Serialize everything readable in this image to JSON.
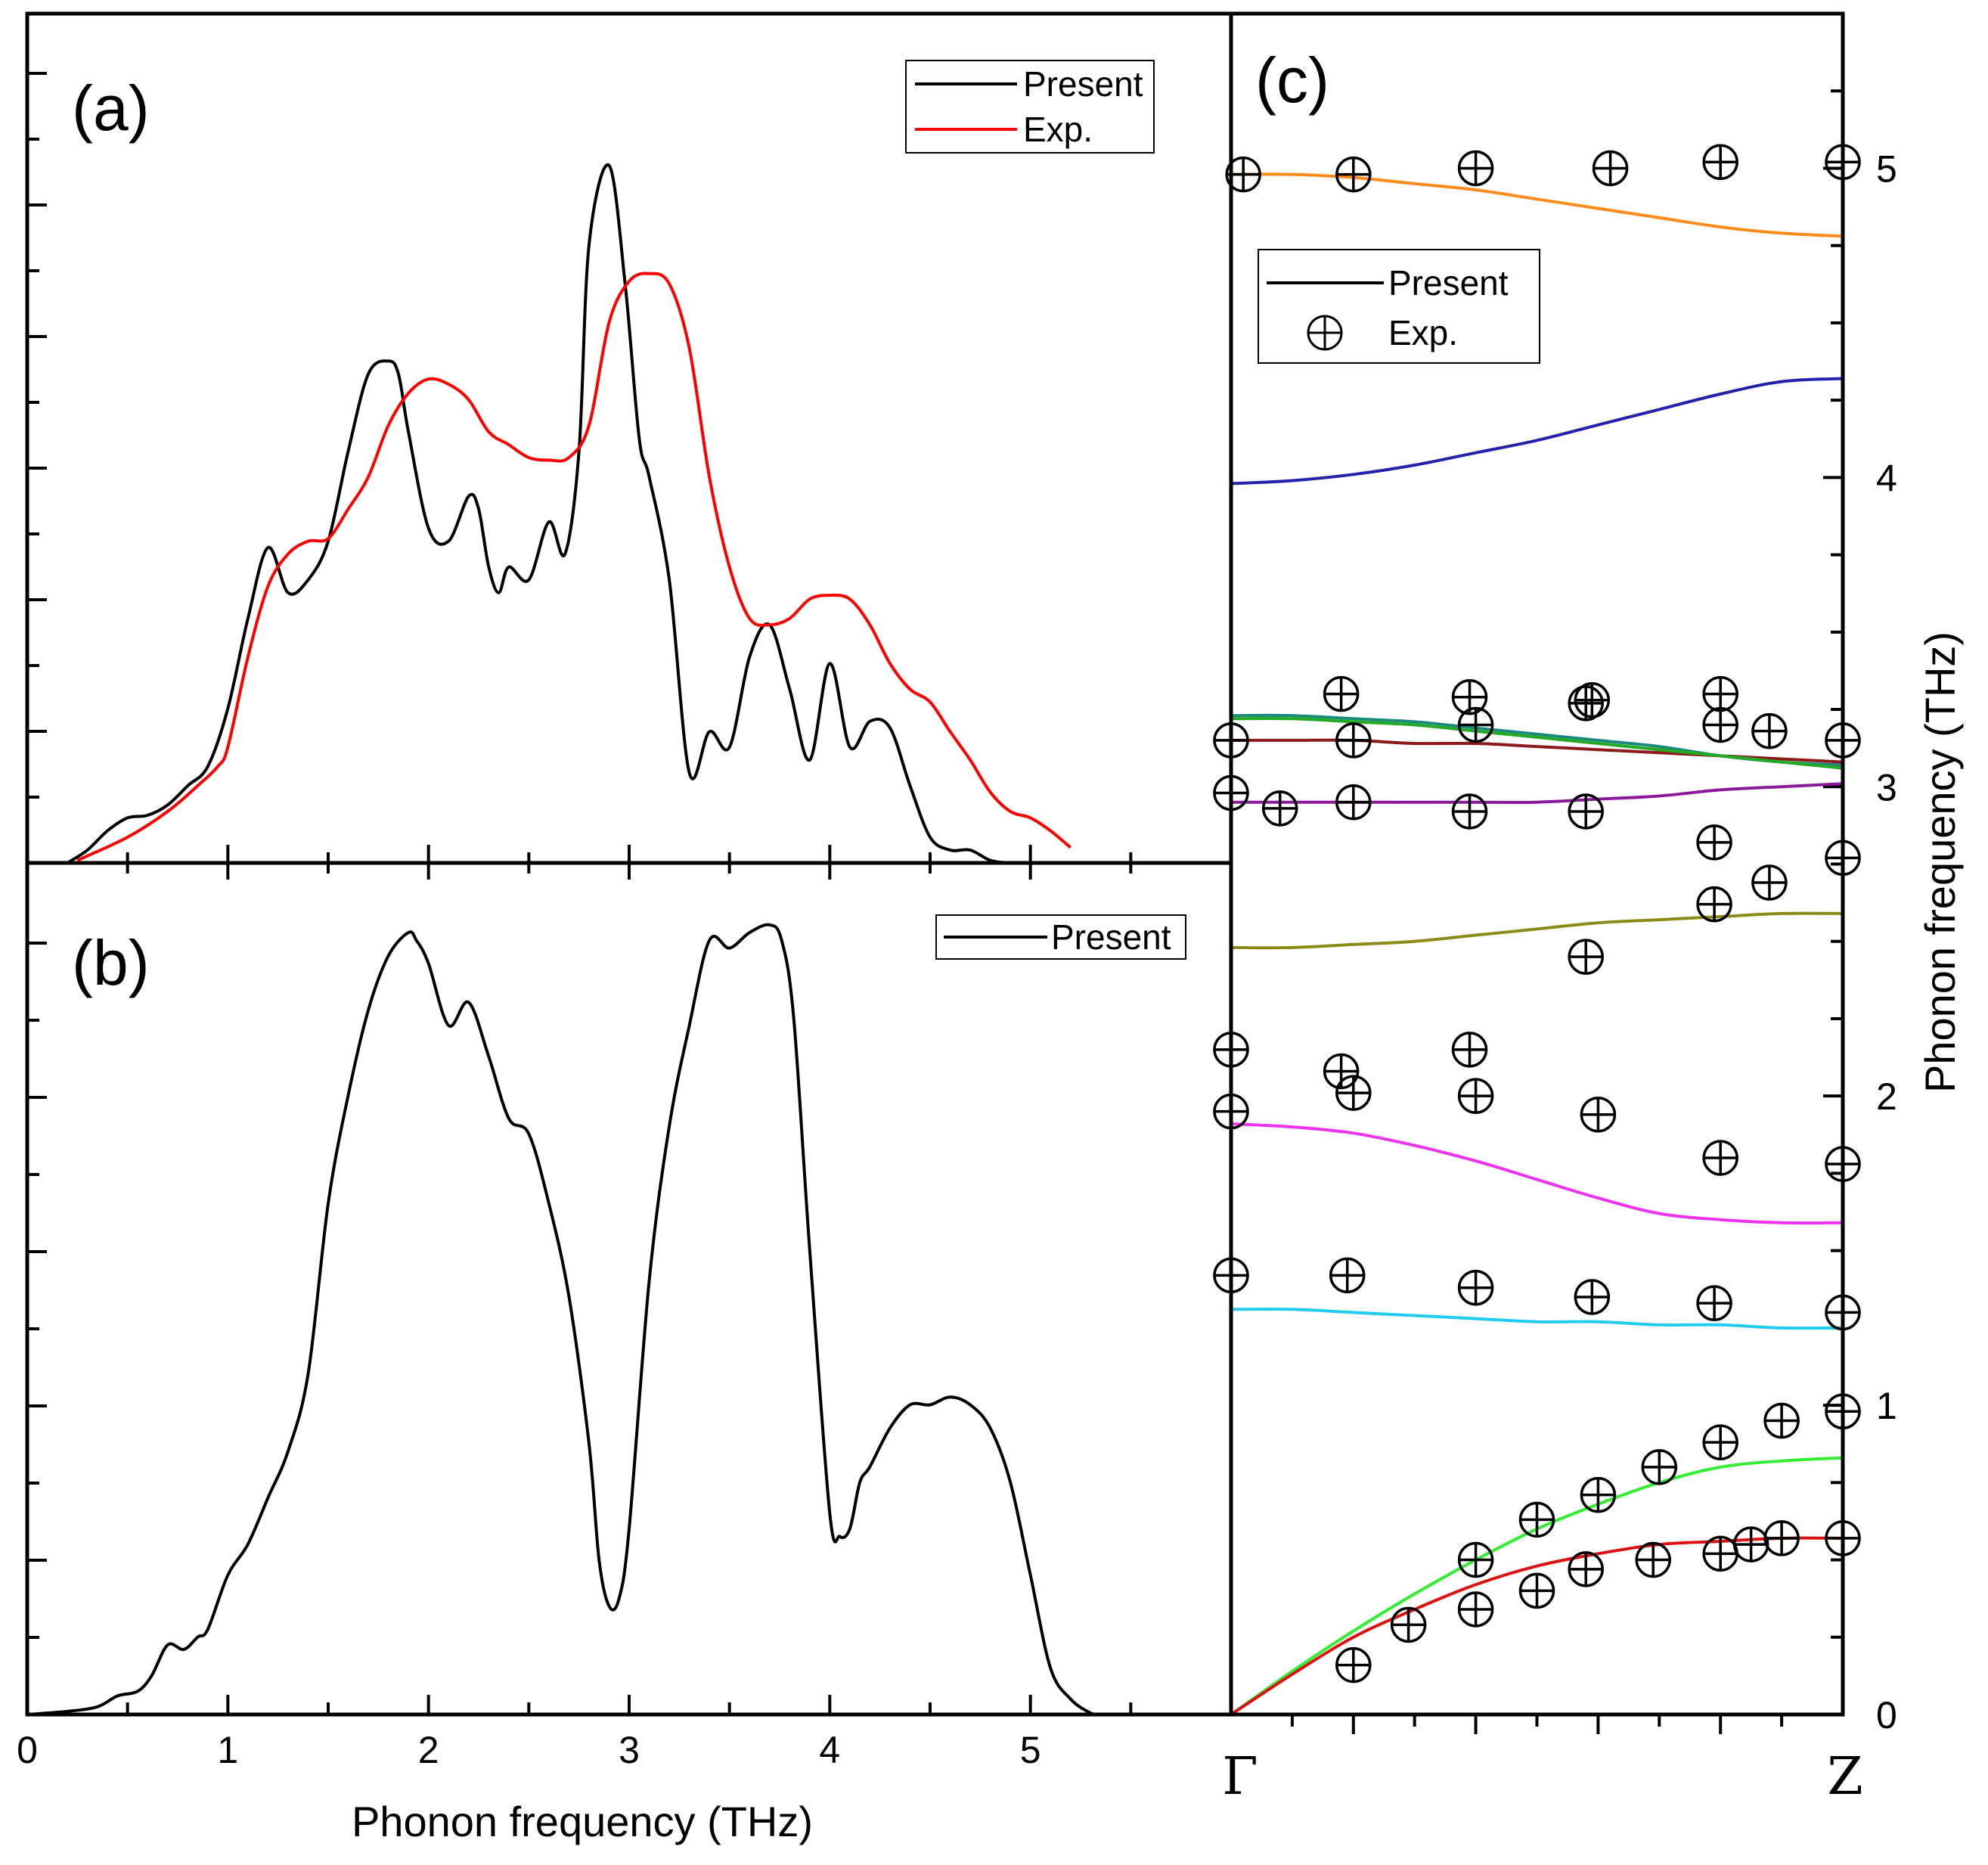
{
  "chart_data": [
    {
      "panel": "(a)",
      "type": "line",
      "xlim": [
        0,
        6
      ],
      "ylim": [
        0,
        6.6
      ],
      "series": [
        {
          "name": "Present",
          "color": "#000000",
          "x": [
            0.2,
            0.3,
            0.4,
            0.5,
            0.6,
            0.7,
            0.8,
            0.9,
            1.0,
            1.1,
            1.2,
            1.3,
            1.4,
            1.5,
            1.6,
            1.7,
            1.8,
            1.85,
            1.9,
            2.0,
            2.1,
            2.2,
            2.25,
            2.3,
            2.35,
            2.4,
            2.5,
            2.6,
            2.68,
            2.75,
            2.8,
            2.9,
            2.98,
            3.05,
            3.1,
            3.2,
            3.3,
            3.4,
            3.5,
            3.6,
            3.7,
            3.8,
            3.9,
            4.0,
            4.1,
            4.2,
            4.3,
            4.4,
            4.5,
            4.6,
            4.7,
            4.8,
            4.9,
            5.0
          ],
          "y": [
            0.0,
            0.1,
            0.25,
            0.35,
            0.37,
            0.45,
            0.6,
            0.75,
            1.2,
            1.9,
            2.45,
            2.1,
            2.2,
            2.5,
            3.2,
            3.8,
            3.9,
            3.8,
            3.35,
            2.6,
            2.5,
            2.85,
            2.75,
            2.3,
            2.1,
            2.3,
            2.2,
            2.65,
            2.4,
            3.2,
            4.8,
            5.42,
            4.5,
            3.3,
            3.0,
            2.2,
            0.7,
            1.02,
            0.9,
            1.6,
            1.85,
            1.35,
            0.8,
            1.55,
            0.9,
            1.1,
            1.05,
            0.6,
            0.2,
            0.1,
            0.1,
            0.02,
            0.0,
            0.0
          ]
        },
        {
          "name": "Exp.",
          "color": "#ff0000",
          "x": [
            0.25,
            0.5,
            0.7,
            0.85,
            0.95,
            1.0,
            1.1,
            1.2,
            1.3,
            1.4,
            1.5,
            1.6,
            1.7,
            1.8,
            1.9,
            2.0,
            2.1,
            2.2,
            2.3,
            2.4,
            2.5,
            2.6,
            2.7,
            2.8,
            2.9,
            3.0,
            3.1,
            3.2,
            3.3,
            3.4,
            3.5,
            3.6,
            3.7,
            3.8,
            3.9,
            4.0,
            4.1,
            4.2,
            4.3,
            4.4,
            4.5,
            4.6,
            4.7,
            4.8,
            4.9,
            5.0,
            5.1,
            5.2
          ],
          "y": [
            0.02,
            0.2,
            0.4,
            0.6,
            0.75,
            0.9,
            1.6,
            2.15,
            2.4,
            2.5,
            2.52,
            2.75,
            3.0,
            3.4,
            3.65,
            3.76,
            3.72,
            3.6,
            3.35,
            3.25,
            3.15,
            3.13,
            3.15,
            3.4,
            4.2,
            4.52,
            4.58,
            4.5,
            4.0,
            3.0,
            2.3,
            1.9,
            1.85,
            1.9,
            2.05,
            2.08,
            2.05,
            1.85,
            1.55,
            1.35,
            1.25,
            1.02,
            0.8,
            0.55,
            0.4,
            0.35,
            0.25,
            0.12
          ]
        }
      ],
      "legend": [
        "Present",
        "Exp."
      ],
      "legend_position": "top-right"
    },
    {
      "panel": "(b)",
      "type": "line",
      "xlim": [
        0,
        6
      ],
      "ylim": [
        0,
        5.5
      ],
      "xlabel": "Phonon frequency (THz)",
      "x_ticks": [
        "0",
        "1",
        "2",
        "3",
        "4",
        "5"
      ],
      "series": [
        {
          "name": "Present",
          "color": "#000000",
          "x": [
            0.0,
            0.2,
            0.35,
            0.45,
            0.55,
            0.62,
            0.7,
            0.78,
            0.85,
            0.9,
            1.0,
            1.1,
            1.2,
            1.3,
            1.4,
            1.5,
            1.6,
            1.7,
            1.8,
            1.9,
            1.94,
            2.0,
            2.1,
            2.2,
            2.3,
            2.4,
            2.5,
            2.6,
            2.7,
            2.8,
            2.85,
            2.9,
            2.95,
            3.0,
            3.1,
            3.2,
            3.3,
            3.4,
            3.5,
            3.6,
            3.7,
            3.76,
            3.82,
            3.9,
            4.0,
            4.05,
            4.1,
            4.15,
            4.2,
            4.3,
            4.4,
            4.5,
            4.6,
            4.7,
            4.8,
            4.9,
            5.0,
            5.1,
            5.2,
            5.3,
            5.35
          ],
          "y": [
            0.0,
            0.02,
            0.05,
            0.12,
            0.15,
            0.25,
            0.45,
            0.42,
            0.5,
            0.55,
            0.9,
            1.1,
            1.4,
            1.7,
            2.2,
            3.3,
            4.0,
            4.55,
            4.9,
            5.05,
            5.0,
            4.85,
            4.45,
            4.6,
            4.25,
            3.85,
            3.75,
            3.3,
            2.7,
            1.75,
            1.0,
            0.7,
            0.75,
            1.2,
            2.8,
            3.8,
            4.45,
            5.0,
            4.95,
            5.05,
            5.1,
            5.0,
            4.5,
            3.0,
            1.3,
            1.15,
            1.2,
            1.5,
            1.6,
            1.85,
            2.0,
            2.0,
            2.05,
            2.0,
            1.85,
            1.5,
            0.9,
            0.3,
            0.1,
            0.01,
            0.0
          ]
        }
      ],
      "legend": [
        "Present"
      ],
      "legend_position": "top-right"
    },
    {
      "panel": "(c)",
      "type": "line",
      "ylabel": "Phonon frequency (THz)",
      "ylim": [
        0,
        5.5
      ],
      "x_ticks": [
        "Γ",
        "Z"
      ],
      "y_ticks": [
        "0",
        "1",
        "2",
        "3",
        "4",
        "5"
      ],
      "legend": [
        "Present",
        "Exp."
      ],
      "legend_position": "top-left",
      "bands_x": [
        0,
        0.1,
        0.2,
        0.3,
        0.4,
        0.5,
        0.6,
        0.7,
        0.8,
        0.9,
        1.0
      ],
      "bands": [
        {
          "color": "#ff8c1a",
          "y": [
            4.98,
            4.98,
            4.97,
            4.95,
            4.93,
            4.9,
            4.87,
            4.84,
            4.81,
            4.79,
            4.78
          ]
        },
        {
          "color": "#2222aa",
          "y": [
            3.98,
            3.99,
            4.01,
            4.04,
            4.08,
            4.12,
            4.17,
            4.22,
            4.27,
            4.31,
            4.32
          ]
        },
        {
          "color": "#1a8a7a",
          "y": [
            3.23,
            3.23,
            3.22,
            3.21,
            3.19,
            3.17,
            3.15,
            3.13,
            3.1,
            3.08,
            3.07
          ]
        },
        {
          "color": "#8b1a1a",
          "y": [
            3.15,
            3.15,
            3.15,
            3.14,
            3.14,
            3.13,
            3.12,
            3.11,
            3.1,
            3.09,
            3.08
          ]
        },
        {
          "color": "#22aa22",
          "y": [
            3.22,
            3.22,
            3.21,
            3.2,
            3.18,
            3.16,
            3.14,
            3.12,
            3.1,
            3.08,
            3.06
          ]
        },
        {
          "color": "#8b1a9a",
          "y": [
            2.95,
            2.95,
            2.95,
            2.95,
            2.95,
            2.95,
            2.96,
            2.97,
            2.99,
            3.0,
            3.01
          ]
        },
        {
          "color": "#8b8b1a",
          "y": [
            2.48,
            2.48,
            2.49,
            2.5,
            2.52,
            2.54,
            2.56,
            2.57,
            2.58,
            2.59,
            2.59
          ]
        },
        {
          "color": "#ee33ee",
          "y": [
            1.91,
            1.9,
            1.88,
            1.84,
            1.79,
            1.73,
            1.67,
            1.62,
            1.6,
            1.59,
            1.59
          ]
        },
        {
          "color": "#22ccee",
          "y": [
            1.31,
            1.31,
            1.3,
            1.29,
            1.28,
            1.27,
            1.27,
            1.26,
            1.26,
            1.25,
            1.25
          ]
        },
        {
          "color": "#33ee33",
          "y": [
            0.0,
            0.14,
            0.27,
            0.39,
            0.5,
            0.6,
            0.68,
            0.75,
            0.8,
            0.82,
            0.83
          ]
        },
        {
          "color": "#dd1111",
          "y": [
            0.0,
            0.13,
            0.25,
            0.34,
            0.42,
            0.48,
            0.52,
            0.55,
            0.56,
            0.57,
            0.57
          ]
        }
      ],
      "exp_points": [
        [
          0.02,
          4.98
        ],
        [
          0.2,
          4.98
        ],
        [
          0.4,
          5.0
        ],
        [
          0.62,
          5.0
        ],
        [
          0.8,
          5.02
        ],
        [
          1.0,
          5.02
        ],
        [
          0.0,
          3.15
        ],
        [
          0.2,
          3.15
        ],
        [
          0.4,
          3.2
        ],
        [
          0.58,
          3.27
        ],
        [
          0.8,
          3.2
        ],
        [
          0.88,
          3.18
        ],
        [
          1.0,
          3.15
        ],
        [
          0.18,
          3.3
        ],
        [
          0.39,
          3.29
        ],
        [
          0.59,
          3.28
        ],
        [
          0.8,
          3.3
        ],
        [
          0.0,
          2.98
        ],
        [
          0.08,
          2.93
        ],
        [
          0.2,
          2.95
        ],
        [
          0.39,
          2.92
        ],
        [
          0.58,
          2.92
        ],
        [
          1.0,
          2.77
        ],
        [
          0.79,
          2.82
        ],
        [
          0.88,
          2.69
        ],
        [
          0.79,
          2.62
        ],
        [
          0.58,
          2.45
        ],
        [
          0.0,
          2.15
        ],
        [
          0.18,
          2.08
        ],
        [
          0.39,
          2.15
        ],
        [
          0.2,
          2.01
        ],
        [
          0.4,
          2.0
        ],
        [
          0.6,
          1.94
        ],
        [
          0.0,
          1.95
        ],
        [
          0.8,
          1.8
        ],
        [
          1.0,
          1.78
        ],
        [
          0.0,
          1.42
        ],
        [
          0.19,
          1.42
        ],
        [
          0.4,
          1.38
        ],
        [
          0.59,
          1.35
        ],
        [
          0.79,
          1.33
        ],
        [
          1.0,
          1.3
        ],
        [
          0.2,
          0.16
        ],
        [
          0.29,
          0.29
        ],
        [
          0.4,
          0.34
        ],
        [
          0.5,
          0.4
        ],
        [
          0.58,
          0.47
        ],
        [
          0.69,
          0.5
        ],
        [
          0.8,
          0.52
        ],
        [
          0.85,
          0.55
        ],
        [
          0.9,
          0.57
        ],
        [
          1.0,
          0.57
        ],
        [
          0.4,
          0.5
        ],
        [
          0.5,
          0.63
        ],
        [
          0.6,
          0.71
        ],
        [
          0.7,
          0.8
        ],
        [
          0.8,
          0.88
        ],
        [
          0.9,
          0.95
        ],
        [
          1.0,
          0.98
        ]
      ]
    }
  ],
  "text": {
    "panel_a": "(a)",
    "panel_b": "(b)",
    "panel_c": "(c)",
    "xlabel": "Phonon frequency (THz)",
    "ylabel_c": "Phonon frequency (THz)",
    "legend_present": "Present",
    "legend_exp": "Exp.",
    "x_ticks_b": [
      "0",
      "1",
      "2",
      "3",
      "4",
      "5"
    ],
    "y_ticks_c": [
      "0",
      "1",
      "2",
      "3",
      "4",
      "5"
    ],
    "gamma": "Γ",
    "zpoint": "Z"
  }
}
